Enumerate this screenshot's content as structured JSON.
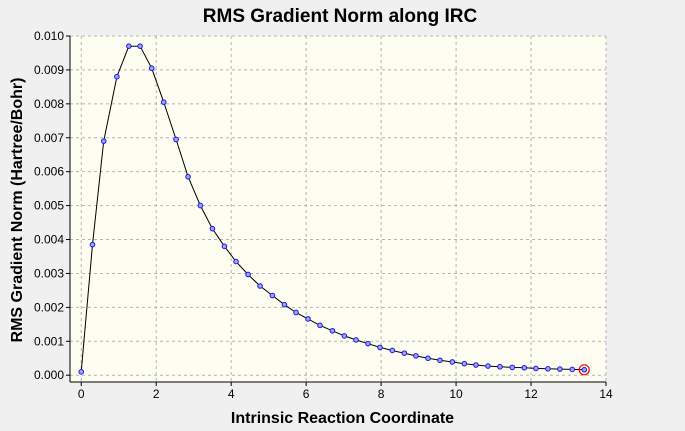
{
  "chart_data": {
    "type": "line",
    "title": "RMS Gradient Norm along IRC",
    "xlabel": "Intrinsic Reaction Coordinate",
    "ylabel": "RMS Gradient Norm (Hartree/Bohr)",
    "xlim": [
      -0.3,
      14
    ],
    "ylim": [
      -0.0002,
      0.01
    ],
    "x_ticks": [
      "0",
      "2",
      "4",
      "6",
      "8",
      "10",
      "12",
      "14"
    ],
    "y_ticks": [
      "0.000",
      "0.001",
      "0.002",
      "0.003",
      "0.004",
      "0.005",
      "0.006",
      "0.007",
      "0.008",
      "0.009",
      "0.010"
    ],
    "grid": true,
    "series": [
      {
        "x": [
          0.0,
          0.3,
          0.6,
          0.95,
          1.27,
          1.57,
          1.88,
          2.2,
          2.53,
          2.85,
          3.18,
          3.5,
          3.82,
          4.13,
          4.45,
          4.77,
          5.1,
          5.42,
          5.73,
          6.05,
          6.37,
          6.7,
          7.02,
          7.33,
          7.65,
          7.97,
          8.3,
          8.62,
          8.93,
          9.25,
          9.57,
          9.9,
          10.22,
          10.53,
          10.85,
          11.17,
          11.5,
          11.82,
          12.13,
          12.45,
          12.77,
          13.1,
          13.42
        ],
        "y": [
          0.0001,
          0.00385,
          0.0069,
          0.0088,
          0.0097,
          0.0097,
          0.00905,
          0.00805,
          0.00695,
          0.00585,
          0.005,
          0.00432,
          0.0038,
          0.00335,
          0.00297,
          0.00263,
          0.00235,
          0.00208,
          0.00185,
          0.00166,
          0.00147,
          0.00131,
          0.00116,
          0.00104,
          0.00093,
          0.00082,
          0.00073,
          0.00065,
          0.00057,
          0.0005,
          0.00044,
          0.00039,
          0.00034,
          0.0003,
          0.00027,
          0.00025,
          0.00023,
          0.00022,
          0.0002,
          0.00019,
          0.00018,
          0.00017,
          0.00016
        ]
      }
    ],
    "highlight_index": 42,
    "colors": {
      "plot_bg": "#fdfdf1",
      "line": "#000000",
      "marker_stroke": "#1a1ae6",
      "marker_fill": "#a0a0ff",
      "highlight": "#ff0000",
      "grid": "#b4b4b4"
    }
  }
}
